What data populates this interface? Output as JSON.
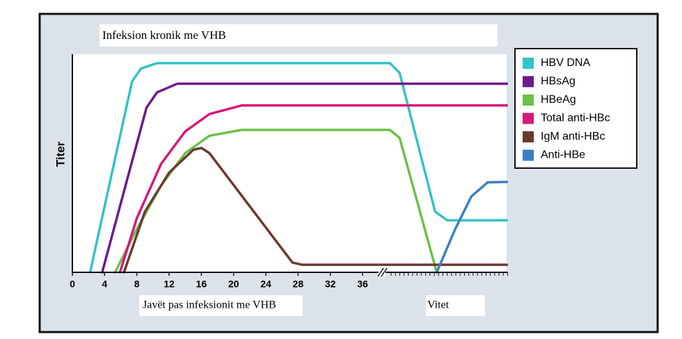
{
  "chart_data": {
    "type": "line",
    "title": "Infeksion kronik me VHB",
    "y_label": "Titer",
    "x_label": "Javët pas infeksionit me VHB",
    "x2_label": "Vitet",
    "xlim": [
      0,
      54
    ],
    "ylim": [
      0,
      100
    ],
    "xticks": [
      0,
      4,
      8,
      12,
      16,
      20,
      24,
      28,
      32,
      36
    ],
    "legend": "right",
    "series": [
      {
        "name": "HBV DNA",
        "color": "#33c2c6",
        "x": [
          2.2,
          7.4,
          8.5,
          10.5,
          39.4,
          40.6,
          45,
          46.5,
          53.9
        ],
        "values": [
          0,
          88,
          94,
          96.5,
          96.5,
          92,
          28,
          24,
          24
        ]
      },
      {
        "name": "HBsAg",
        "color": "#6a1b8a",
        "x": [
          3.7,
          9.2,
          10.5,
          13,
          53.9
        ],
        "values": [
          0,
          76,
          83,
          87,
          87
        ]
      },
      {
        "name": "HBeAg",
        "color": "#6cc04a",
        "x": [
          5.3,
          8,
          11,
          14,
          17,
          21,
          39.4,
          40.6,
          45.2
        ],
        "values": [
          0,
          20,
          40,
          55,
          63,
          65.7,
          65.7,
          62,
          0
        ]
      },
      {
        "name": "Total anti-HBc",
        "color": "#d6197a",
        "x": [
          5.9,
          8,
          11,
          14,
          17,
          21,
          53.9
        ],
        "values": [
          0,
          25,
          50,
          65,
          73,
          77,
          77
        ]
      },
      {
        "name": "IgM anti-HBc",
        "color": "#6b3a2e",
        "x": [
          6.4,
          9,
          12,
          15,
          16,
          17,
          27.3,
          28.5,
          53.9
        ],
        "values": [
          0,
          28,
          46,
          56.5,
          57.4,
          55,
          4.5,
          3.5,
          3.5
        ]
      },
      {
        "name": "Anti-HBe",
        "color": "#3b7fc4",
        "x": [
          45.2,
          47.5,
          49.5,
          51.5,
          53.9
        ],
        "values": [
          0,
          20,
          35,
          41.5,
          41.7
        ]
      }
    ]
  }
}
